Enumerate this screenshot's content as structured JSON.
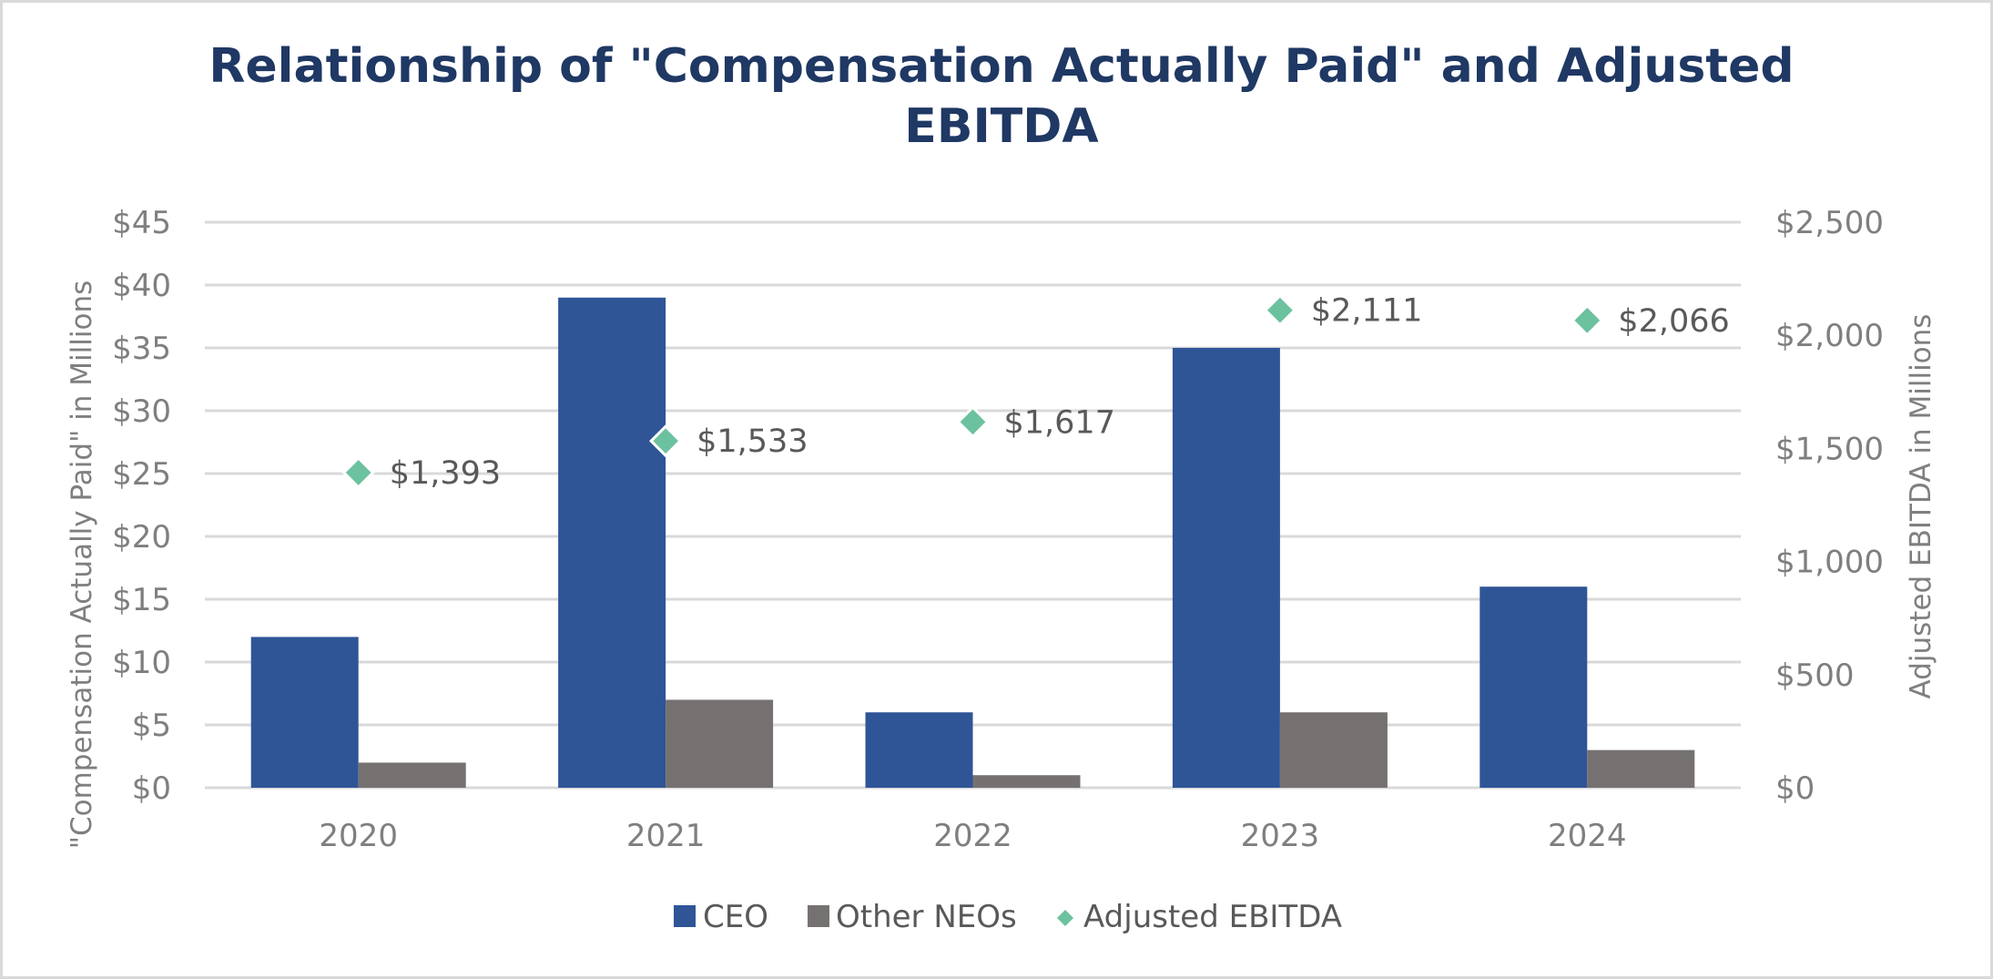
{
  "chart_data": {
    "type": "bar",
    "title": "Relationship of \"Compensation Actually Paid\" and Adjusted EBITDA",
    "title_lines": [
      "Relationship of \"Compensation Actually Paid\" and Adjusted",
      "EBITDA"
    ],
    "categories": [
      "2020",
      "2021",
      "2022",
      "2023",
      "2024"
    ],
    "series": [
      {
        "name": "CEO",
        "type": "bar",
        "axis": "left",
        "color": "#2f5597",
        "values": [
          12,
          39,
          6,
          35,
          16
        ]
      },
      {
        "name": "Other NEOs",
        "type": "bar",
        "axis": "left",
        "color": "#767171",
        "values": [
          2,
          7,
          1,
          6,
          3
        ]
      },
      {
        "name": "Adjusted EBITDA",
        "type": "scatter",
        "marker": "diamond",
        "axis": "right",
        "color": "#6cc19e",
        "values": [
          1393,
          1533,
          1617,
          2111,
          2066
        ],
        "labels": [
          "$1,393",
          "$1,533",
          "$1,617",
          "$2,111",
          "$2,066"
        ]
      }
    ],
    "ylabel": "\"Compensation Actually Paid\" in Millions",
    "ylim": [
      0,
      45
    ],
    "yticks": [
      0,
      5,
      10,
      15,
      20,
      25,
      30,
      35,
      40,
      45
    ],
    "ytick_labels": [
      "$0",
      "$5",
      "$10",
      "$15",
      "$20",
      "$25",
      "$30",
      "$35",
      "$40",
      "$45"
    ],
    "y2label": "Adjusted EBITDA in Millions",
    "y2lim": [
      0,
      2500
    ],
    "y2ticks": [
      0,
      500,
      1000,
      1500,
      2000,
      2500
    ],
    "y2tick_labels": [
      "$0",
      "$500",
      "$1,000",
      "$1,500",
      "$2,000",
      "$2,500"
    ],
    "grid": true,
    "legend": "bottom-center"
  }
}
